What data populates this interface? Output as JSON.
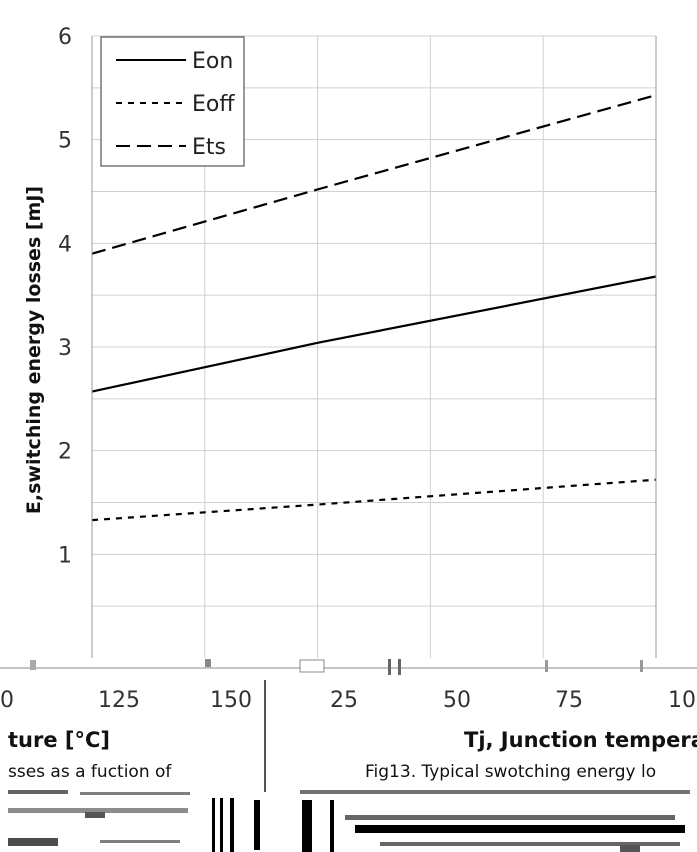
{
  "chart_data": {
    "type": "line",
    "ylabel": "E,switching energy losses [mJ]",
    "ylim": [
      0,
      6
    ],
    "yticks": [
      1,
      2,
      3,
      4,
      5,
      6
    ],
    "grid": true,
    "legend_position": "top-left",
    "series": [
      {
        "name": "Eon",
        "style": "solid",
        "color": "#000000",
        "values": [
          2.57,
          3.04,
          3.68
        ]
      },
      {
        "name": "Eoff",
        "style": "dotted",
        "color": "#000000",
        "values": [
          1.33,
          1.48,
          1.72
        ]
      },
      {
        "name": "Ets",
        "style": "dashed",
        "color": "#000000",
        "values": [
          3.9,
          4.52,
          5.43
        ]
      }
    ],
    "x_fraction": [
      0,
      0.4,
      1
    ]
  },
  "bottom_strip": {
    "left_ticks": [
      "0",
      "125",
      "150"
    ],
    "right_ticks": [
      "25",
      "50",
      "75",
      "10"
    ],
    "left_axis_title": "ture [°C]",
    "left_caption": "sses as a fuction of",
    "right_axis_title": "Tj, Junction temperat",
    "right_caption": "Fig13. Typical swotching energy lo"
  }
}
